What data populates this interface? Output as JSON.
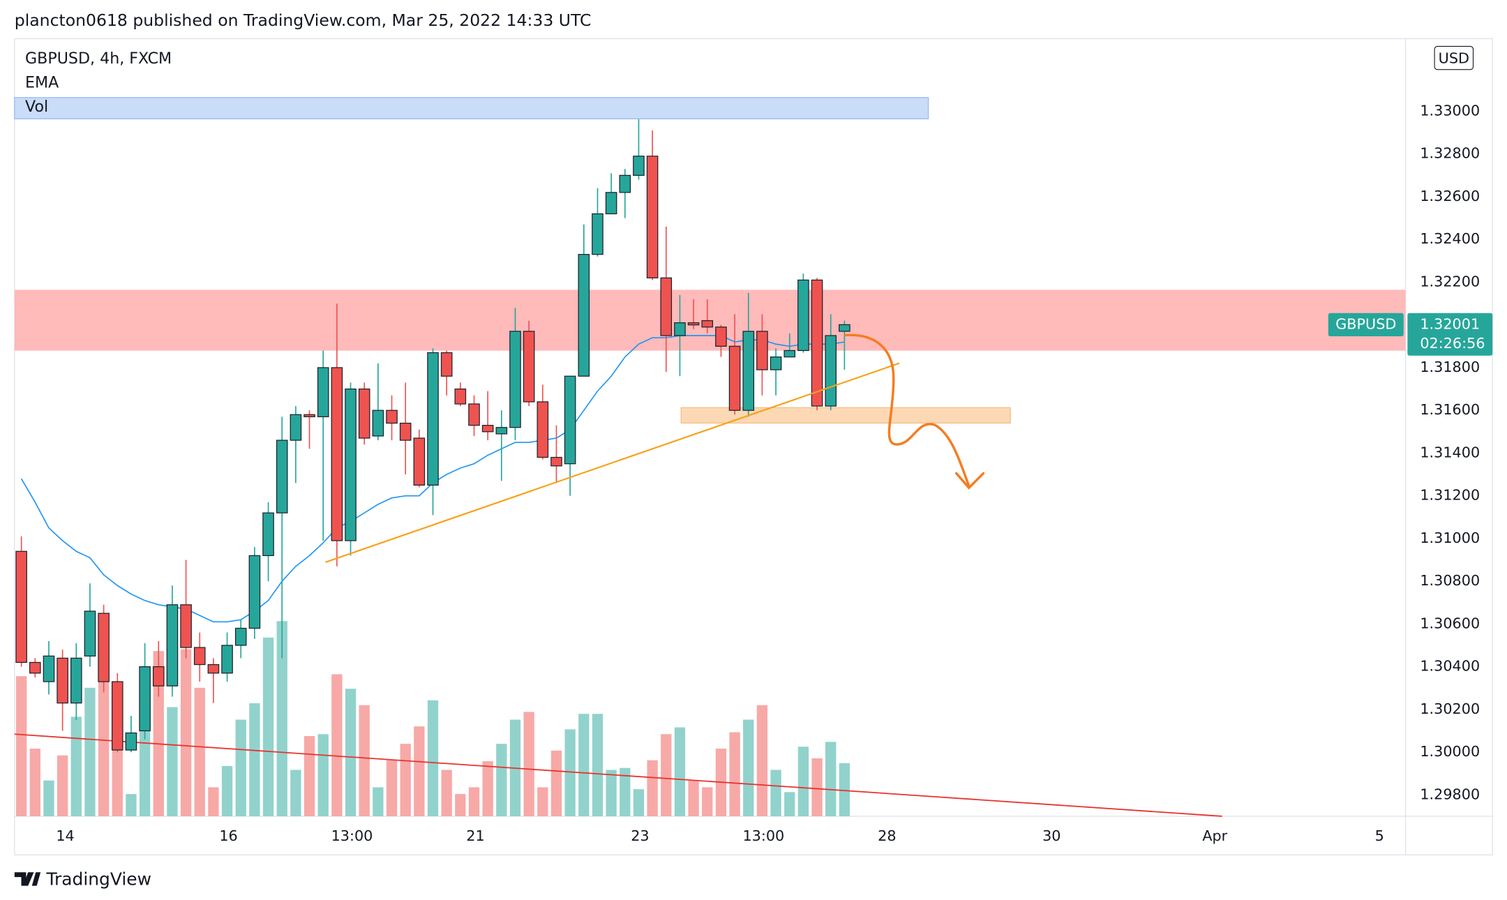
{
  "header": "plancton0618 published on TradingView.com, Mar 25, 2022 14:33 UTC",
  "logo": "TradingView",
  "chart_data": {
    "type": "candlestick",
    "title": "GBPUSD, 4h, FXCM",
    "symbol": "GBPUSD",
    "currency": "USD",
    "last_price": 1.32001,
    "countdown": "02:26:56",
    "up_color": "#26a69a",
    "down_color": "#ef5350",
    "x": [
      0,
      1,
      2,
      3,
      4,
      5,
      6,
      7,
      8,
      9,
      10,
      11,
      12,
      13,
      14,
      15,
      16,
      17,
      18,
      19,
      20,
      21,
      22,
      23,
      24,
      25,
      26,
      27,
      28,
      29,
      30,
      31,
      32,
      33,
      34,
      35,
      36,
      37,
      38,
      39,
      40,
      41,
      42,
      43,
      44,
      45,
      46,
      47,
      48,
      49,
      50,
      51,
      52,
      53,
      54,
      55,
      56,
      57,
      58,
      59,
      60
    ],
    "open": [
      1.3094,
      1.3042,
      1.3033,
      1.3044,
      1.3023,
      1.3045,
      1.3065,
      1.3033,
      1.3001,
      1.301,
      1.304,
      1.3031,
      1.3069,
      1.3049,
      1.3041,
      1.3037,
      1.305,
      1.3058,
      1.3092,
      1.3112,
      1.3146,
      1.3158,
      1.3157,
      1.318,
      1.3099,
      1.317,
      1.3148,
      1.316,
      1.3154,
      1.3147,
      1.3125,
      1.3187,
      1.317,
      1.3163,
      1.3153,
      1.3149,
      1.3152,
      1.3197,
      1.3164,
      1.3138,
      1.3135,
      1.3176,
      1.3233,
      1.3252,
      1.3262,
      1.327,
      1.3279,
      1.3222,
      1.3195,
      1.3201,
      1.3202,
      1.3199,
      1.319,
      1.316,
      1.3197,
      1.3179,
      1.3185,
      1.3188,
      1.3221,
      1.3162,
      1.3197
    ],
    "high": [
      1.3101,
      1.3044,
      1.3052,
      1.3048,
      1.3051,
      1.3079,
      1.3069,
      1.3037,
      1.3017,
      1.3051,
      1.3052,
      1.3078,
      1.309,
      1.3056,
      1.3044,
      1.3056,
      1.3062,
      1.3096,
      1.3117,
      1.3157,
      1.3162,
      1.316,
      1.3188,
      1.321,
      1.3173,
      1.3173,
      1.3182,
      1.3167,
      1.3173,
      1.3151,
      1.3189,
      1.3188,
      1.3173,
      1.3167,
      1.3169,
      1.316,
      1.3208,
      1.3202,
      1.3172,
      1.3153,
      1.3176,
      1.3247,
      1.3264,
      1.3271,
      1.3273,
      1.3298,
      1.3291,
      1.3246,
      1.3214,
      1.3212,
      1.3212,
      1.32,
      1.3205,
      1.3215,
      1.3205,
      1.3189,
      1.3196,
      1.3224,
      1.3222,
      1.3205,
      1.3202
    ],
    "low": [
      1.304,
      1.3035,
      1.3027,
      1.301,
      1.3015,
      1.304,
      1.3028,
      1.3,
      1.3,
      1.3006,
      1.3026,
      1.3026,
      1.3044,
      1.3033,
      1.3023,
      1.3033,
      1.3044,
      1.3053,
      1.308,
      1.3044,
      1.3126,
      1.3142,
      1.3099,
      1.3087,
      1.3092,
      1.3144,
      1.3146,
      1.3146,
      1.313,
      1.3124,
      1.3111,
      1.3167,
      1.3162,
      1.3148,
      1.3146,
      1.3127,
      1.3146,
      1.3162,
      1.3137,
      1.3126,
      1.312,
      1.3176,
      1.3232,
      1.3252,
      1.325,
      1.3268,
      1.3221,
      1.3178,
      1.3176,
      1.3198,
      1.3196,
      1.3185,
      1.3158,
      1.3157,
      1.3167,
      1.3167,
      1.3185,
      1.3187,
      1.316,
      1.316,
      1.3179
    ],
    "close": [
      1.3042,
      1.3037,
      1.3045,
      1.3023,
      1.3044,
      1.3066,
      1.3033,
      1.3001,
      1.3009,
      1.304,
      1.3031,
      1.3069,
      1.3049,
      1.3041,
      1.3037,
      1.305,
      1.3058,
      1.3092,
      1.3112,
      1.3146,
      1.3158,
      1.3157,
      1.318,
      1.3099,
      1.317,
      1.3147,
      1.316,
      1.3154,
      1.3146,
      1.3125,
      1.3187,
      1.3176,
      1.3163,
      1.3153,
      1.315,
      1.3152,
      1.3197,
      1.3164,
      1.3138,
      1.3134,
      1.3176,
      1.3233,
      1.3252,
      1.3262,
      1.327,
      1.3279,
      1.3222,
      1.3195,
      1.3201,
      1.32,
      1.3199,
      1.319,
      1.316,
      1.3197,
      1.3179,
      1.3185,
      1.3188,
      1.3221,
      1.3162,
      1.3195,
      1.32001
    ],
    "series": [
      {
        "name": "EMA",
        "color": "#2196f3",
        "values": [
          1.3128,
          1.3117,
          1.3105,
          1.3099,
          1.3094,
          1.3091,
          1.3083,
          1.3078,
          1.3074,
          1.3071,
          1.3069,
          1.3068,
          1.3067,
          1.3064,
          1.3061,
          1.3061,
          1.3062,
          1.3066,
          1.3071,
          1.308,
          1.3087,
          1.3092,
          1.3098,
          1.3105,
          1.3108,
          1.3112,
          1.3116,
          1.3119,
          1.312,
          1.312,
          1.3126,
          1.313,
          1.3133,
          1.3135,
          1.3139,
          1.3142,
          1.3145,
          1.3145,
          1.3146,
          1.3147,
          1.3151,
          1.316,
          1.3169,
          1.3176,
          1.3185,
          1.3191,
          1.3194,
          1.3194,
          1.3195,
          1.3195,
          1.3195,
          1.3195,
          1.3192,
          1.3193,
          1.3193,
          1.3191,
          1.319,
          1.3191,
          1.3191,
          1.3191,
          1.3192
        ]
      }
    ],
    "volume": {
      "name": "Vol",
      "up_color": "#92d2cc",
      "down_color": "#f7a9a7",
      "values": [
        145,
        70,
        37,
        63,
        103,
        133,
        145,
        72,
        23,
        103,
        171,
        113,
        173,
        133,
        30,
        52,
        100,
        117,
        185,
        202,
        48,
        83,
        85,
        147,
        132,
        115,
        30,
        58,
        75,
        93,
        120,
        48,
        23,
        30,
        57,
        75,
        100,
        108,
        30,
        68,
        90,
        106,
        106,
        48,
        50,
        28,
        58,
        85,
        92,
        37,
        30,
        70,
        87,
        100,
        115,
        48,
        25,
        72,
        60,
        77,
        55
      ]
    },
    "vlim": [
      0,
      805
    ],
    "xlim": [
      -0.5,
      100.9
    ],
    "xticks": [
      {
        "value": 3.2,
        "label": "14"
      },
      {
        "value": 15.1,
        "label": "16"
      },
      {
        "value": 24.1,
        "label": "13:00"
      },
      {
        "value": 33.1,
        "label": "21"
      },
      {
        "value": 45.1,
        "label": "23"
      },
      {
        "value": 54.1,
        "label": "13:00"
      },
      {
        "value": 63.1,
        "label": "28"
      },
      {
        "value": 75.1,
        "label": "30"
      },
      {
        "value": 87,
        "label": "Apr"
      },
      {
        "value": 99,
        "label": "5"
      }
    ],
    "ylim": [
      1.297,
      1.3334
    ],
    "yticks": [
      {
        "value": 1.298,
        "label": "1.29800"
      },
      {
        "value": 1.3,
        "label": "1.30000"
      },
      {
        "value": 1.302,
        "label": "1.30200"
      },
      {
        "value": 1.304,
        "label": "1.30400"
      },
      {
        "value": 1.306,
        "label": "1.30600"
      },
      {
        "value": 1.308,
        "label": "1.30800"
      },
      {
        "value": 1.31,
        "label": "1.31000"
      },
      {
        "value": 1.312,
        "label": "1.31200"
      },
      {
        "value": 1.314,
        "label": "1.31400"
      },
      {
        "value": 1.316,
        "label": "1.31600"
      },
      {
        "value": 1.318,
        "label": "1.31800"
      },
      {
        "value": 1.32,
        "label": "1.32000"
      },
      {
        "value": 1.322,
        "label": "1.32200"
      },
      {
        "value": 1.324,
        "label": "1.32400"
      },
      {
        "value": 1.326,
        "label": "1.32600"
      },
      {
        "value": 1.328,
        "label": "1.32800"
      },
      {
        "value": 1.33,
        "label": "1.33000"
      }
    ],
    "grid": false
  }
}
